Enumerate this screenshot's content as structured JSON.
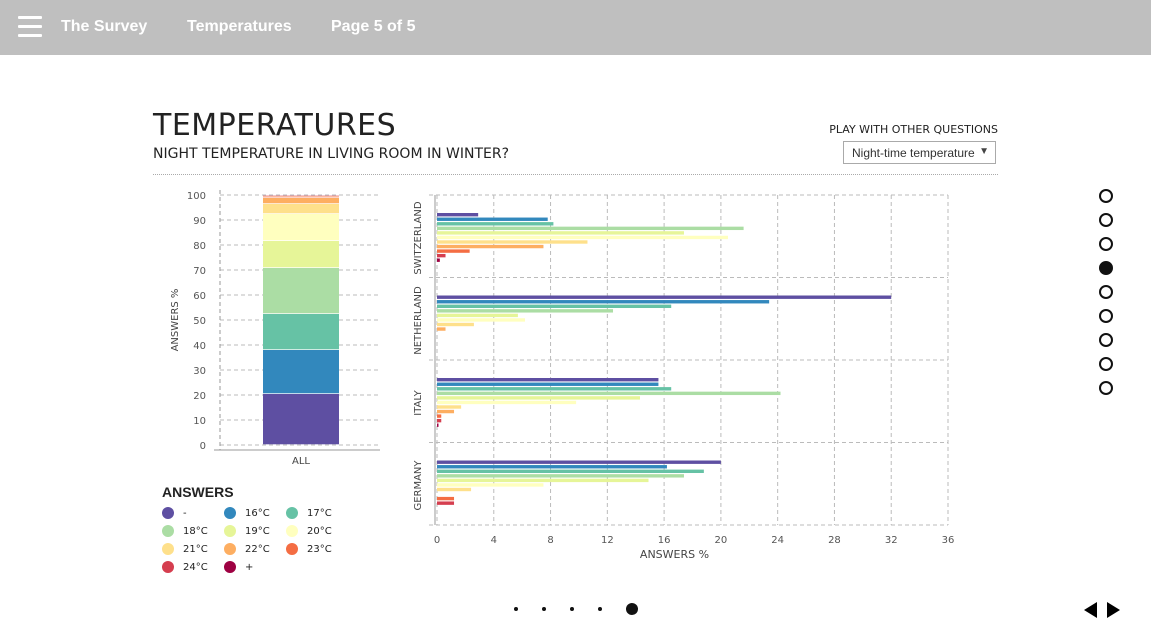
{
  "nav": {
    "app_title": "The Survey",
    "section": "Temperatures",
    "page": "Page 5 of 5"
  },
  "header": {
    "title": "TEMPERATURES",
    "question": "NIGHT TEMPERATURE IN LIVING ROOM IN WINTER?",
    "other_questions_label": "PLAY WITH OTHER QUESTIONS",
    "select_value": "Night-time temperature"
  },
  "colors": [
    "#5e4fa2",
    "#3288bd",
    "#66c2a5",
    "#abdda4",
    "#e6f598",
    "#ffffbf",
    "#fee08b",
    "#fdae61",
    "#f46d43",
    "#d53e4f",
    "#9e0142"
  ],
  "legend": {
    "title": "ANSWERS",
    "items": [
      "-",
      "16°C",
      "17°C",
      "18°C",
      "19°C",
      "20°C",
      "21°C",
      "22°C",
      "23°C",
      "24°C",
      "+"
    ]
  },
  "side_nav": {
    "count": 9,
    "active": 3
  },
  "pager": {
    "count": 5,
    "active": 4
  },
  "chart_data": [
    {
      "type": "bar",
      "stacked": true,
      "categories": [
        "ALL"
      ],
      "ylabel": "ANSWERS %",
      "ylim": [
        0,
        100
      ],
      "yticks": [
        0,
        10,
        20,
        30,
        40,
        50,
        60,
        70,
        80,
        90,
        100
      ],
      "series": [
        {
          "name": "-",
          "values": [
            20.4
          ]
        },
        {
          "name": "16°C",
          "values": [
            17.6
          ]
        },
        {
          "name": "17°C",
          "values": [
            14.4
          ]
        },
        {
          "name": "18°C",
          "values": [
            18.4
          ]
        },
        {
          "name": "19°C",
          "values": [
            10.8
          ]
        },
        {
          "name": "20°C",
          "values": [
            10.8
          ]
        },
        {
          "name": "21°C",
          "values": [
            4.0
          ]
        },
        {
          "name": "22°C",
          "values": [
            2.4
          ]
        },
        {
          "name": "23°C",
          "values": [
            0.6
          ]
        },
        {
          "name": "24°C",
          "values": [
            0.4
          ]
        },
        {
          "name": "+",
          "values": [
            0.2
          ]
        }
      ],
      "grid": true
    },
    {
      "type": "bar",
      "orientation": "horizontal",
      "xlabel": "ANSWERS %",
      "xlim": [
        0,
        36
      ],
      "xticks": [
        0,
        4,
        8,
        12,
        16,
        20,
        24,
        28,
        32,
        36
      ],
      "grid": true,
      "groups": [
        {
          "name": "SWITZERLAND",
          "values": [
            2.9,
            7.8,
            8.2,
            21.6,
            17.4,
            20.5,
            10.6,
            7.5,
            2.3,
            0.6,
            0.2
          ]
        },
        {
          "name": "NETHERLAND",
          "values": [
            32.0,
            23.4,
            16.5,
            12.4,
            5.7,
            6.2,
            2.6,
            0.6,
            0,
            0,
            0
          ]
        },
        {
          "name": "ITALY",
          "values": [
            15.6,
            15.6,
            16.5,
            24.2,
            14.3,
            9.8,
            1.7,
            1.2,
            0.3,
            0.3,
            0.1
          ]
        },
        {
          "name": "GERMANY",
          "values": [
            20.0,
            16.2,
            18.8,
            17.4,
            14.9,
            7.5,
            2.4,
            0,
            1.2,
            1.2,
            0
          ]
        }
      ]
    }
  ]
}
